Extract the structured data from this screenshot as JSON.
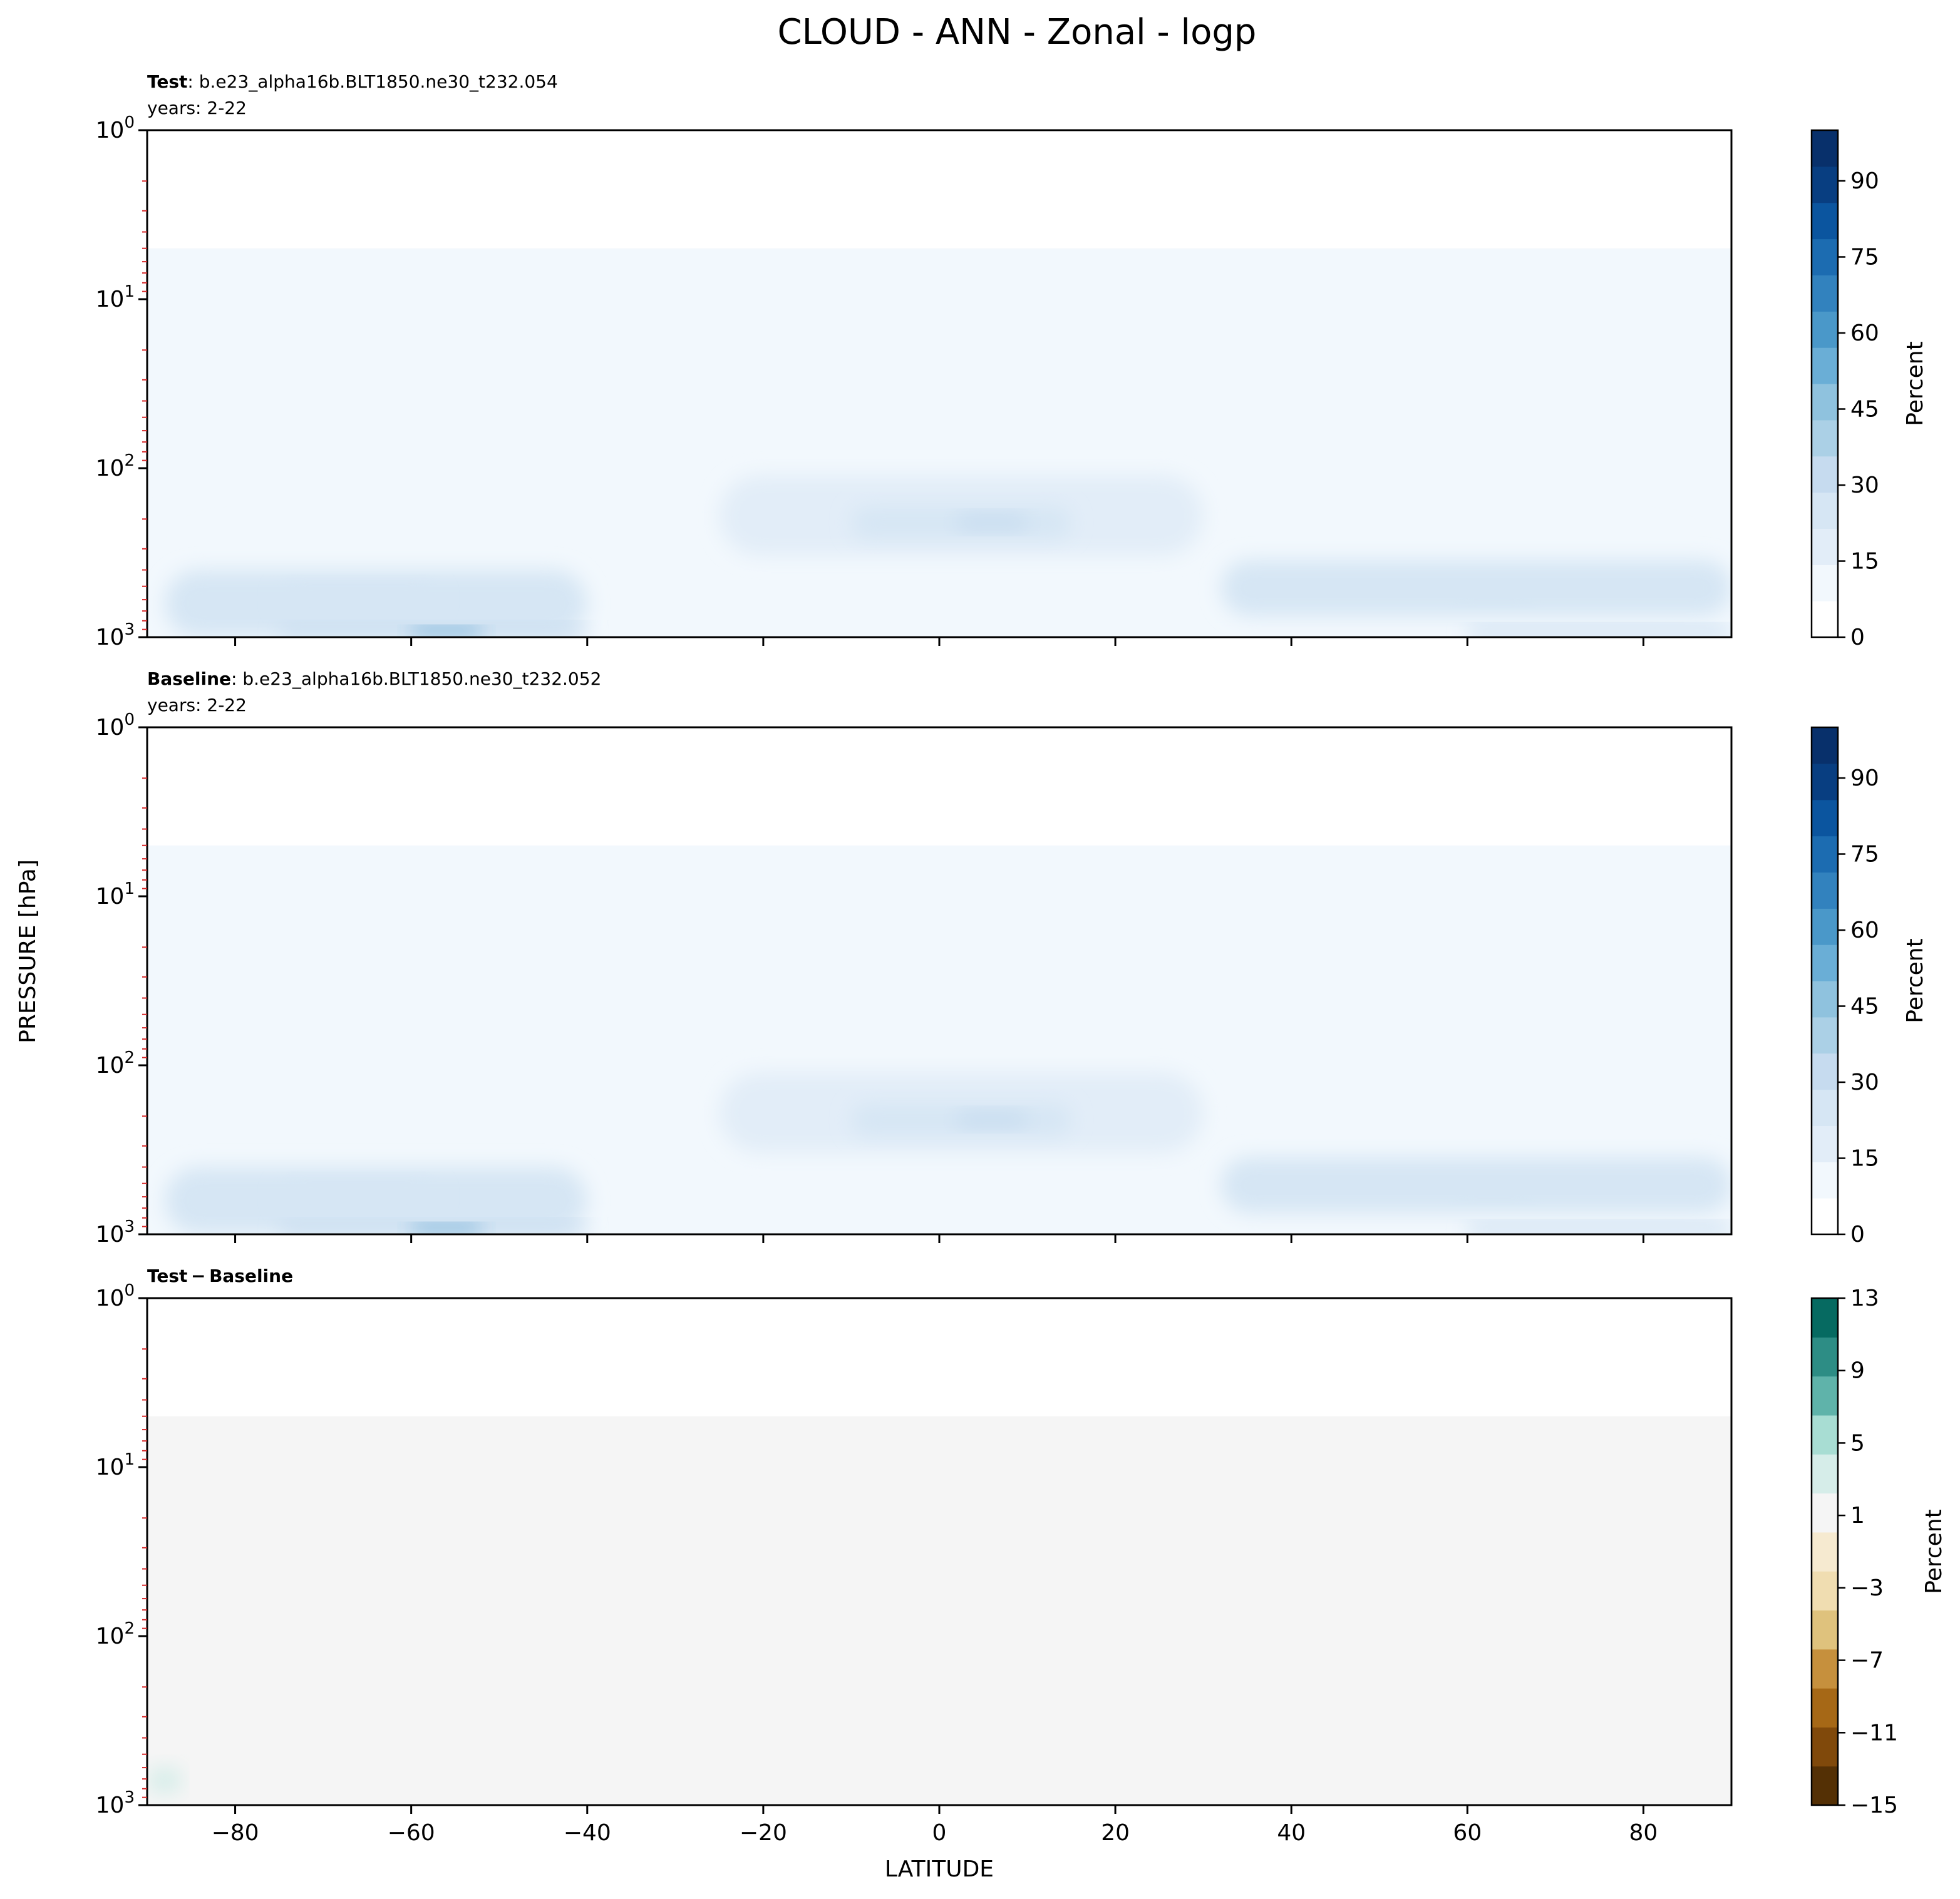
{
  "figure": {
    "title": "CLOUD - ANN - Zonal - logp",
    "ylabel": "PRESSURE [hPa]",
    "xlabel": "LATITUDE"
  },
  "chart_data": [
    {
      "type": "heatmap",
      "panel": "test",
      "title_bold": "Test",
      "title_rest": ": b.e23_alpha16b.BLT1850.ne30_t232.054",
      "subtitle": "years: 2-22",
      "xlim": [
        -90,
        90
      ],
      "ylim": [
        1000,
        1
      ],
      "yscale": "log",
      "x_ticks": [
        -80,
        -60,
        -40,
        -20,
        0,
        20,
        40,
        60,
        80
      ],
      "y_ticks": [
        {
          "base": "10",
          "exp": "0"
        },
        {
          "base": "10",
          "exp": "1"
        },
        {
          "base": "10",
          "exp": "2"
        },
        {
          "base": "10",
          "exp": "3"
        }
      ],
      "colormap": "Blues",
      "colorbar": {
        "label": "Percent",
        "range": [
          0,
          100
        ],
        "ticks": [
          "0",
          "15",
          "30",
          "45",
          "60",
          "75",
          "90"
        ],
        "tick_values": [
          0,
          15,
          30,
          45,
          60,
          75,
          90
        ]
      },
      "contour_regions": [
        {
          "level": 3,
          "lat": [
            -90,
            90
          ],
          "p": [
            5,
            1000
          ]
        },
        {
          "level": 10,
          "lat": [
            -90,
            90
          ],
          "p": [
            150,
            1000
          ]
        },
        {
          "level": 15,
          "lat": [
            -25,
            30
          ],
          "p": [
            110,
            330
          ]
        },
        {
          "level": 25,
          "lat": [
            -10,
            15
          ],
          "p": [
            170,
            260
          ]
        },
        {
          "level": 32,
          "lat": [
            2,
            10
          ],
          "p": [
            190,
            230
          ]
        },
        {
          "level": 22,
          "lat": [
            -88,
            -40
          ],
          "p": [
            400,
            1000
          ]
        },
        {
          "level": 28,
          "lat": [
            -75,
            -57
          ],
          "p": [
            500,
            700
          ]
        },
        {
          "level": 22,
          "lat": [
            32,
            90
          ],
          "p": [
            350,
            750
          ]
        },
        {
          "level": 28,
          "lat": [
            58,
            68
          ],
          "p": [
            520,
            620
          ]
        },
        {
          "level": 35,
          "lat": [
            -75,
            -40
          ],
          "p": [
            850,
            990
          ]
        },
        {
          "level": 60,
          "lat": [
            -60,
            -52
          ],
          "p": [
            880,
            960
          ]
        },
        {
          "level": 30,
          "lat": [
            60,
            90
          ],
          "p": [
            870,
            1000
          ]
        },
        {
          "level": 2,
          "lat": [
            -28,
            -8
          ],
          "p": [
            600,
            850
          ]
        },
        {
          "level": 2,
          "lat": [
            12,
            30
          ],
          "p": [
            600,
            850
          ]
        }
      ]
    },
    {
      "type": "heatmap",
      "panel": "baseline",
      "title_bold": "Baseline",
      "title_rest": ": b.e23_alpha16b.BLT1850.ne30_t232.052",
      "subtitle": "years: 2-22",
      "xlim": [
        -90,
        90
      ],
      "ylim": [
        1000,
        1
      ],
      "yscale": "log",
      "x_ticks": [
        -80,
        -60,
        -40,
        -20,
        0,
        20,
        40,
        60,
        80
      ],
      "y_ticks": [
        {
          "base": "10",
          "exp": "0"
        },
        {
          "base": "10",
          "exp": "1"
        },
        {
          "base": "10",
          "exp": "2"
        },
        {
          "base": "10",
          "exp": "3"
        }
      ],
      "colormap": "Blues",
      "colorbar": {
        "label": "Percent",
        "range": [
          0,
          100
        ],
        "ticks": [
          "0",
          "15",
          "30",
          "45",
          "60",
          "75",
          "90"
        ],
        "tick_values": [
          0,
          15,
          30,
          45,
          60,
          75,
          90
        ]
      },
      "contour_regions": [
        {
          "level": 3,
          "lat": [
            -90,
            90
          ],
          "p": [
            5,
            1000
          ]
        },
        {
          "level": 10,
          "lat": [
            -90,
            90
          ],
          "p": [
            150,
            1000
          ]
        },
        {
          "level": 15,
          "lat": [
            -25,
            30
          ],
          "p": [
            110,
            330
          ]
        },
        {
          "level": 25,
          "lat": [
            -10,
            15
          ],
          "p": [
            170,
            260
          ]
        },
        {
          "level": 32,
          "lat": [
            2,
            10
          ],
          "p": [
            190,
            230
          ]
        },
        {
          "level": 22,
          "lat": [
            -88,
            -40
          ],
          "p": [
            400,
            1000
          ]
        },
        {
          "level": 28,
          "lat": [
            -75,
            -57
          ],
          "p": [
            500,
            700
          ]
        },
        {
          "level": 22,
          "lat": [
            32,
            90
          ],
          "p": [
            350,
            750
          ]
        },
        {
          "level": 28,
          "lat": [
            58,
            68
          ],
          "p": [
            520,
            620
          ]
        },
        {
          "level": 35,
          "lat": [
            -75,
            -40
          ],
          "p": [
            850,
            990
          ]
        },
        {
          "level": 60,
          "lat": [
            -60,
            -52
          ],
          "p": [
            880,
            960
          ]
        },
        {
          "level": 30,
          "lat": [
            60,
            90
          ],
          "p": [
            870,
            1000
          ]
        },
        {
          "level": 2,
          "lat": [
            -28,
            -8
          ],
          "p": [
            600,
            850
          ]
        },
        {
          "level": 2,
          "lat": [
            12,
            30
          ],
          "p": [
            600,
            850
          ]
        }
      ]
    },
    {
      "type": "heatmap",
      "panel": "difference",
      "title_bold": "Test − Baseline",
      "title_rest": "",
      "subtitle": "",
      "xlim": [
        -90,
        90
      ],
      "ylim": [
        1000,
        1
      ],
      "yscale": "log",
      "x_ticks": [
        -80,
        -60,
        -40,
        -20,
        0,
        20,
        40,
        60,
        80
      ],
      "y_ticks": [
        {
          "base": "10",
          "exp": "0"
        },
        {
          "base": "10",
          "exp": "1"
        },
        {
          "base": "10",
          "exp": "2"
        },
        {
          "base": "10",
          "exp": "3"
        }
      ],
      "colormap": "BrBG",
      "colorbar": {
        "label": "Percent",
        "range": [
          -15,
          13
        ],
        "ticks": [
          "13",
          "9",
          "5",
          "1",
          "−3",
          "−7",
          "−11",
          "−15"
        ],
        "tick_values": [
          13,
          9,
          5,
          1,
          -3,
          -7,
          -11,
          -15
        ]
      },
      "contour_regions": [
        {
          "level": 0,
          "lat": [
            -90,
            90
          ],
          "p": [
            5,
            1000
          ]
        },
        {
          "level": 1.5,
          "lat": [
            -90,
            -86
          ],
          "p": [
            600,
            850
          ]
        }
      ]
    }
  ],
  "colors": {
    "blues": [
      "#ffffff",
      "#f2f8fd",
      "#e2edf8",
      "#d6e6f4",
      "#c6dbef",
      "#abd0e6",
      "#8fc2de",
      "#6aaed6",
      "#4a98c9",
      "#3282be",
      "#1c6cb1",
      "#0b559f",
      "#083e81",
      "#08306b"
    ],
    "brbg": [
      "#543005",
      "#80490b",
      "#a66816",
      "#c6903d",
      "#dfc27d",
      "#f0ddb1",
      "#f6ead0",
      "#f5f5f5",
      "#d6ede9",
      "#a8ddd3",
      "#5fb3aa",
      "#2d8d85",
      "#066a61",
      "#00473a"
    ],
    "tick_minor": "#d62728"
  }
}
